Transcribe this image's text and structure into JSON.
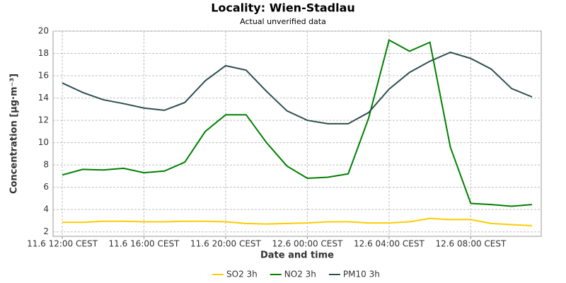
{
  "chart_data": {
    "type": "line",
    "title": "Locality: Wien-Stadlau",
    "subtitle": "Actual unverified data",
    "x_label": "Date and time",
    "y_label": "Concentration [µg·m⁻³]",
    "categories": [
      "11.6 12:00 CEST",
      null,
      null,
      null,
      "11.6 16:00 CEST",
      null,
      null,
      null,
      "11.6 20:00 CEST",
      null,
      null,
      null,
      "12.6 00:00 CEST",
      null,
      null,
      null,
      "12.6 04:00 CEST",
      null,
      null,
      null,
      "12.6 08:00 CEST",
      null,
      null,
      null
    ],
    "series": [
      {
        "name": "SO2 3h",
        "color": "#ffcc00",
        "values": [
          2.85,
          2.85,
          2.95,
          2.95,
          2.9,
          2.9,
          2.95,
          2.95,
          2.9,
          2.75,
          2.7,
          2.75,
          2.8,
          2.9,
          2.9,
          2.8,
          2.8,
          2.9,
          3.2,
          3.1,
          3.1,
          2.75,
          2.65,
          2.55
        ]
      },
      {
        "name": "NO2 3h",
        "color": "#008000",
        "values": [
          7.1,
          7.6,
          7.55,
          7.7,
          7.3,
          7.45,
          8.25,
          11.0,
          12.5,
          12.5,
          10.0,
          7.9,
          6.8,
          6.9,
          7.2,
          12.2,
          19.2,
          18.2,
          19.0,
          9.6,
          4.55,
          4.45,
          4.3,
          4.45
        ]
      },
      {
        "name": "PM10 3h",
        "color": "#2f4f4f",
        "values": [
          15.35,
          14.5,
          13.85,
          13.5,
          13.1,
          12.9,
          13.6,
          15.55,
          16.9,
          16.5,
          14.6,
          12.85,
          12.0,
          11.7,
          11.7,
          12.7,
          14.8,
          16.3,
          17.3,
          18.1,
          17.55,
          16.6,
          14.85,
          14.1
        ]
      }
    ],
    "ylim": [
      1.6,
      20
    ],
    "yticks": [
      2,
      4,
      6,
      8,
      10,
      12,
      14,
      16,
      18,
      20
    ],
    "grid": true,
    "legend": "bottom"
  }
}
